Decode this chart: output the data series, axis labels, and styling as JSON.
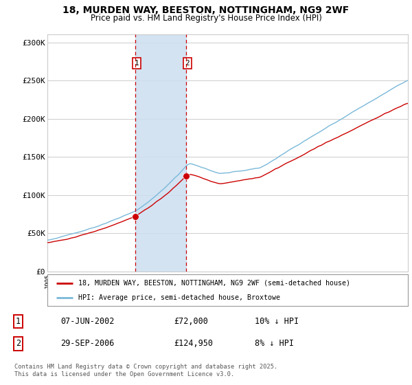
{
  "title_line1": "18, MURDEN WAY, BEESTON, NOTTINGHAM, NG9 2WF",
  "title_line2": "Price paid vs. HM Land Registry's House Price Index (HPI)",
  "ylim": [
    0,
    310000
  ],
  "yticks": [
    0,
    50000,
    100000,
    150000,
    200000,
    250000,
    300000
  ],
  "ytick_labels": [
    "£0",
    "£50K",
    "£100K",
    "£150K",
    "£200K",
    "£250K",
    "£300K"
  ],
  "sale1_date": "07-JUN-2002",
  "sale1_price": 72000,
  "sale1_hpi_diff": "10% ↓ HPI",
  "sale1_year": 2002.44,
  "sale2_date": "29-SEP-2006",
  "sale2_price": 124950,
  "sale2_hpi_diff": "8% ↓ HPI",
  "sale2_year": 2006.75,
  "legend_label1": "18, MURDEN WAY, BEESTON, NOTTINGHAM, NG9 2WF (semi-detached house)",
  "legend_label2": "HPI: Average price, semi-detached house, Broxtowe",
  "footer": "Contains HM Land Registry data © Crown copyright and database right 2025.\nThis data is licensed under the Open Government Licence v3.0.",
  "hpi_color": "#7ab8d9",
  "price_color": "#cc0000",
  "shade_color": "#ccdff0",
  "vline_color": "#cc0000",
  "background_color": "#ffffff",
  "grid_color": "#cccccc",
  "xmin": 1995.0,
  "xmax": 2025.5
}
